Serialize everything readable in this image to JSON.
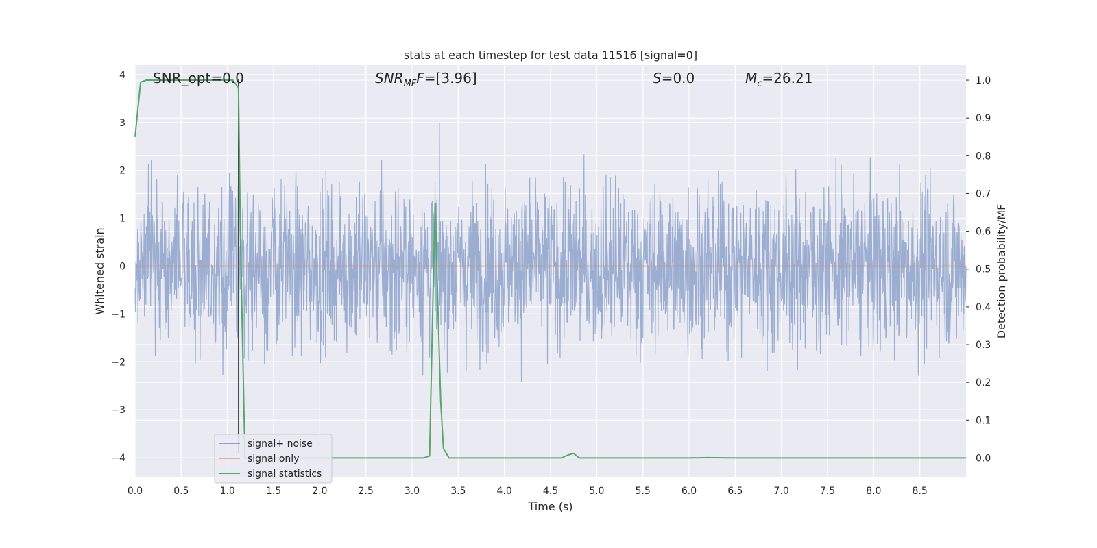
{
  "chart_data": {
    "type": "line",
    "title": "stats at each timestep for test data 11516 [signal=0]",
    "xlabel": "Time (s)",
    "ylabel": "Whitened strain",
    "y2label": "Detection probability/MF",
    "xlim": [
      0.0,
      9.0
    ],
    "ylim": [
      -4.4,
      4.2
    ],
    "y2lim": [
      -0.05,
      1.04
    ],
    "xticks": [
      "0.0",
      "0.5",
      "1.0",
      "1.5",
      "2.0",
      "2.5",
      "3.0",
      "3.5",
      "4.0",
      "4.5",
      "5.0",
      "5.5",
      "6.0",
      "6.5",
      "7.0",
      "7.5",
      "8.0",
      "8.5"
    ],
    "yticks": [
      "−4",
      "−3",
      "−2",
      "−1",
      "0",
      "1",
      "2",
      "3",
      "4"
    ],
    "y2ticks": [
      "0.0",
      "0.1",
      "0.2",
      "0.3",
      "0.4",
      "0.5",
      "0.6",
      "0.7",
      "0.8",
      "0.9",
      "1.0"
    ],
    "grid": true,
    "legend_position": "lower-left",
    "annotations": {
      "snr_opt": "SNR_opt=0.0",
      "snr_mf_main": "SNR",
      "snr_mf_sub": "MF",
      "snr_mf_value": "=[3.96]",
      "s_main": "S",
      "s_value": "=0.0",
      "mc_main": "M",
      "mc_sub": "c",
      "mc_value": "=26.21"
    },
    "vertical_line_x": 1.12,
    "series": [
      {
        "name": "signal+ noise",
        "color": "#4c72b0",
        "description_kind": "noise",
        "typical_amplitude": 1.2,
        "peak_range": [
          -3.75,
          3.9
        ]
      },
      {
        "name": "signal only",
        "color": "#dd8452",
        "x": [
          0.0,
          9.0
        ],
        "y": [
          0.0,
          0.0
        ]
      },
      {
        "name": "signal statistics",
        "color": "#55a868",
        "axis": "right",
        "x": [
          0.0,
          0.06,
          0.12,
          0.25,
          0.5,
          0.75,
          1.0,
          1.06,
          1.12,
          1.14,
          1.19,
          1.25,
          1.5,
          2.0,
          2.5,
          3.0,
          3.12,
          3.19,
          3.22,
          3.25,
          3.28,
          3.31,
          3.34,
          3.4,
          3.5,
          4.0,
          4.5,
          4.62,
          4.69,
          4.75,
          4.81,
          5.0,
          5.5,
          6.0,
          6.19,
          6.5,
          7.0,
          8.0,
          9.0
        ],
        "y": [
          0.85,
          0.995,
          1.0,
          1.0,
          1.0,
          1.0,
          1.0,
          1.0,
          0.98,
          0.6,
          0.0,
          0.0,
          0.0,
          0.0,
          0.0,
          0.0,
          0.0,
          0.005,
          0.35,
          0.675,
          0.4,
          0.15,
          0.025,
          0.0,
          0.0,
          0.0,
          0.0,
          0.0,
          0.008,
          0.012,
          0.0,
          0.0,
          0.0,
          0.0,
          0.001,
          0.0,
          0.0,
          0.0,
          0.0
        ]
      }
    ]
  }
}
